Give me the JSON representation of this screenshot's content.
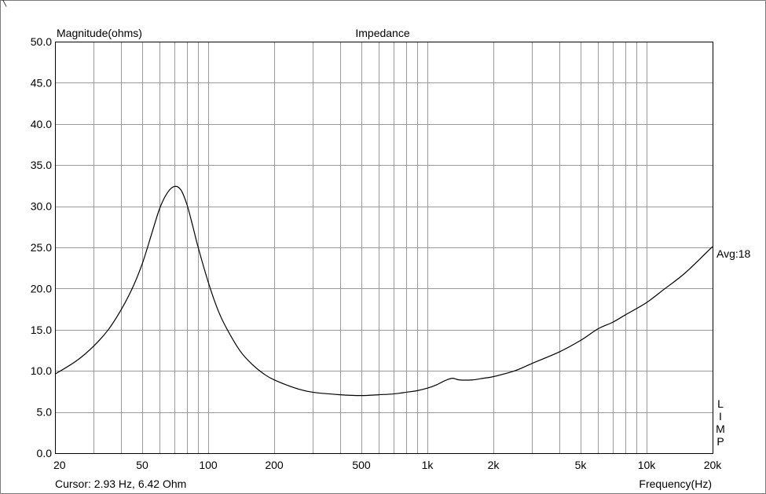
{
  "chart_data": {
    "type": "line",
    "title": "Impedance",
    "ylabel": "Magnitude(ohms)",
    "xlabel": "Frequency(Hz)",
    "x_scale": "log",
    "xlim": [
      20,
      20000
    ],
    "ylim": [
      0,
      50
    ],
    "grid": true,
    "y_ticks": [
      "0.0",
      "5.0",
      "10.0",
      "15.0",
      "20.0",
      "25.0",
      "30.0",
      "35.0",
      "40.0",
      "45.0",
      "50.0"
    ],
    "x_tick_labels": [
      {
        "value": 20,
        "label": "20"
      },
      {
        "value": 50,
        "label": "50"
      },
      {
        "value": 100,
        "label": "100"
      },
      {
        "value": 200,
        "label": "200"
      },
      {
        "value": 500,
        "label": "500"
      },
      {
        "value": 1000,
        "label": "1k"
      },
      {
        "value": 2000,
        "label": "2k"
      },
      {
        "value": 5000,
        "label": "5k"
      },
      {
        "value": 10000,
        "label": "10k"
      },
      {
        "value": 20000,
        "label": "20k"
      }
    ],
    "series": [
      {
        "x": [
          20,
          25,
          30,
          35,
          40,
          45,
          50,
          55,
          60,
          65,
          70,
          75,
          80,
          85,
          90,
          100,
          110,
          120,
          140,
          160,
          180,
          200,
          250,
          300,
          400,
          500,
          600,
          700,
          800,
          900,
          1000,
          1100,
          1200,
          1300,
          1400,
          1600,
          1800,
          2000,
          2500,
          3000,
          4000,
          5000,
          6000,
          7000,
          8000,
          10000,
          12000,
          15000,
          20000
        ],
        "y": [
          9.6,
          11.2,
          13.0,
          15.0,
          17.4,
          20.0,
          23.0,
          26.5,
          29.7,
          31.6,
          32.4,
          32.0,
          30.2,
          27.6,
          25.0,
          20.8,
          17.6,
          15.4,
          12.4,
          10.7,
          9.6,
          8.9,
          7.9,
          7.4,
          7.1,
          7.0,
          7.1,
          7.2,
          7.4,
          7.6,
          7.9,
          8.3,
          8.8,
          9.1,
          8.9,
          8.9,
          9.1,
          9.3,
          10.0,
          10.9,
          12.3,
          13.7,
          15.1,
          15.9,
          16.8,
          18.3,
          19.9,
          21.9,
          25.1
        ]
      }
    ]
  },
  "legend_text": "Avg:18",
  "side_label": [
    "L",
    "I",
    "M",
    "P"
  ],
  "cursor_text": "Cursor: 2.93 Hz, 6.42 Ohm"
}
